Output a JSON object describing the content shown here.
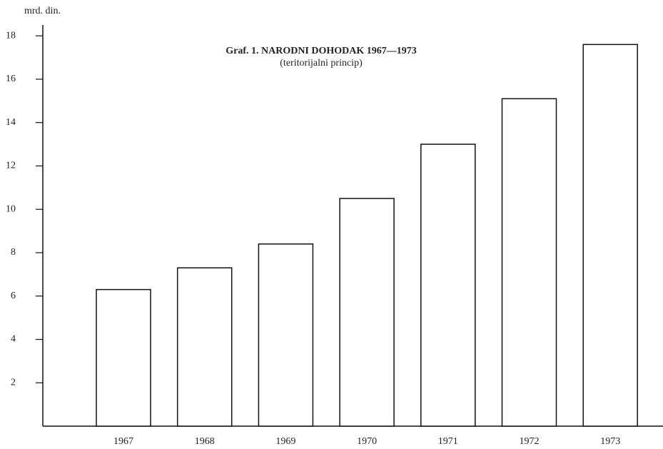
{
  "chart_data": {
    "type": "bar",
    "title": "Graf. 1. NARODNI DOHODAK 1967—1973",
    "subtitle": "(teritorijalni princip)",
    "y_label": "mrd. din.",
    "categories": [
      "1967",
      "1968",
      "1969",
      "1970",
      "1971",
      "1972",
      "1973"
    ],
    "values": [
      6.3,
      7.3,
      8.4,
      10.5,
      13.0,
      15.1,
      17.6
    ],
    "color": "#ffffff",
    "ylim": [
      0,
      18.5
    ],
    "yticks": [
      2,
      4,
      6,
      8,
      10,
      12,
      14,
      16,
      18
    ],
    "grid": false
  }
}
